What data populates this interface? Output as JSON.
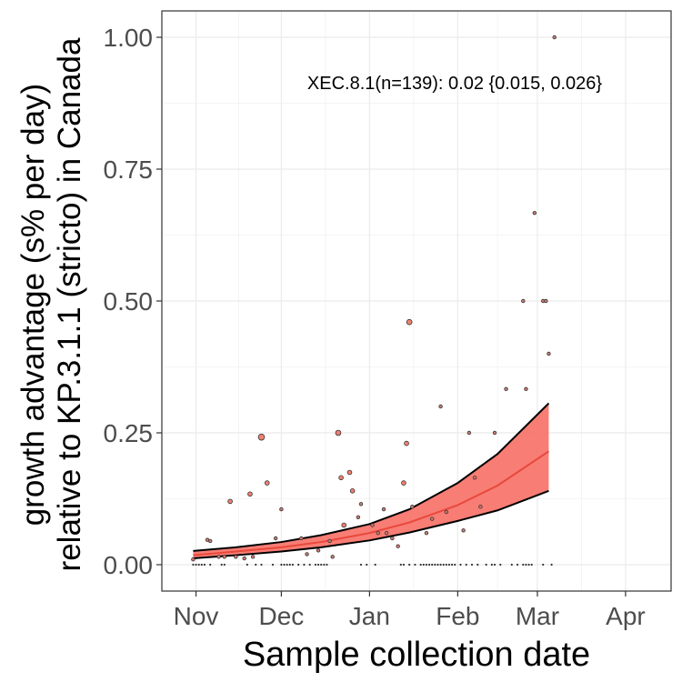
{
  "chart_data": {
    "type": "scatter",
    "xlabel": "Sample collection date",
    "ylabel_lines": [
      "growth advantage (s% per day)",
      "relative to KP.3.1.1 (stricto) in Canada"
    ],
    "annotation": "XEC.8.1(n=139): 0.02 {0.015, 0.026}",
    "x_ticks": [
      {
        "date": "2024-11-01",
        "label": "Nov"
      },
      {
        "date": "2024-12-01",
        "label": "Dec"
      },
      {
        "date": "2025-01-01",
        "label": "Jan"
      },
      {
        "date": "2025-02-01",
        "label": "Feb"
      },
      {
        "date": "2025-03-01",
        "label": "Mar"
      },
      {
        "date": "2025-04-01",
        "label": "Apr"
      }
    ],
    "y_ticks": [
      {
        "value": 0,
        "label": "0.00"
      },
      {
        "value": 0.25,
        "label": "0.25"
      },
      {
        "value": 0.5,
        "label": "0.50"
      },
      {
        "value": 0.75,
        "label": "0.75"
      },
      {
        "value": 1,
        "label": "1.00"
      }
    ],
    "xlim": [
      "2024-10-20",
      "2025-04-17"
    ],
    "ylim": [
      -0.05,
      1.05
    ],
    "grid": true,
    "fit": {
      "color": "#f8766d",
      "line_color": "#e8483c",
      "x": [
        "2024-10-31",
        "2024-11-15",
        "2024-12-01",
        "2024-12-15",
        "2025-01-01",
        "2025-01-15",
        "2025-02-01",
        "2025-02-15",
        "2025-03-05"
      ],
      "mid": [
        0.018,
        0.025,
        0.033,
        0.043,
        0.06,
        0.08,
        0.113,
        0.15,
        0.215
      ],
      "lower": [
        0.012,
        0.018,
        0.025,
        0.033,
        0.046,
        0.061,
        0.083,
        0.103,
        0.14
      ],
      "upper": [
        0.026,
        0.033,
        0.043,
        0.056,
        0.077,
        0.105,
        0.155,
        0.21,
        0.306
      ]
    },
    "points": [
      {
        "x": "2024-10-31",
        "y": 0,
        "size": 1
      },
      {
        "x": "2024-11-01",
        "y": 0,
        "size": 1
      },
      {
        "x": "2024-11-02",
        "y": 0,
        "size": 1
      },
      {
        "x": "2024-11-03",
        "y": 0,
        "size": 1
      },
      {
        "x": "2024-11-04",
        "y": 0,
        "size": 1
      },
      {
        "x": "2024-11-06",
        "y": 0,
        "size": 1
      },
      {
        "x": "2024-11-10",
        "y": 0,
        "size": 1
      },
      {
        "x": "2024-11-11",
        "y": 0,
        "size": 1
      },
      {
        "x": "2024-11-19",
        "y": 0,
        "size": 1
      },
      {
        "x": "2024-11-22",
        "y": 0,
        "size": 1
      },
      {
        "x": "2024-11-24",
        "y": 0,
        "size": 1
      },
      {
        "x": "2024-11-28",
        "y": 0,
        "size": 1
      },
      {
        "x": "2024-12-01",
        "y": 0,
        "size": 1
      },
      {
        "x": "2024-12-02",
        "y": 0,
        "size": 1
      },
      {
        "x": "2024-12-03",
        "y": 0,
        "size": 1
      },
      {
        "x": "2024-12-04",
        "y": 0,
        "size": 1
      },
      {
        "x": "2024-12-05",
        "y": 0,
        "size": 1
      },
      {
        "x": "2024-12-07",
        "y": 0,
        "size": 1
      },
      {
        "x": "2024-12-09",
        "y": 0,
        "size": 1
      },
      {
        "x": "2024-12-11",
        "y": 0,
        "size": 1
      },
      {
        "x": "2024-12-13",
        "y": 0,
        "size": 1
      },
      {
        "x": "2024-12-14",
        "y": 0,
        "size": 1
      },
      {
        "x": "2024-12-15",
        "y": 0,
        "size": 1
      },
      {
        "x": "2024-12-16",
        "y": 0,
        "size": 1
      },
      {
        "x": "2024-12-17",
        "y": 0,
        "size": 1
      },
      {
        "x": "2024-12-29",
        "y": 0,
        "size": 1
      },
      {
        "x": "2024-12-31",
        "y": 0,
        "size": 1
      },
      {
        "x": "2025-01-03",
        "y": 0,
        "size": 1
      },
      {
        "x": "2025-01-12",
        "y": 0,
        "size": 1
      },
      {
        "x": "2025-01-13",
        "y": 0,
        "size": 1
      },
      {
        "x": "2025-01-15",
        "y": 0,
        "size": 1
      },
      {
        "x": "2025-01-17",
        "y": 0,
        "size": 1
      },
      {
        "x": "2025-01-19",
        "y": 0,
        "size": 1
      },
      {
        "x": "2025-01-20",
        "y": 0,
        "size": 1
      },
      {
        "x": "2025-01-21",
        "y": 0,
        "size": 1
      },
      {
        "x": "2025-01-22",
        "y": 0,
        "size": 1
      },
      {
        "x": "2025-01-23",
        "y": 0,
        "size": 1
      },
      {
        "x": "2025-01-24",
        "y": 0,
        "size": 1
      },
      {
        "x": "2025-01-25",
        "y": 0,
        "size": 1
      },
      {
        "x": "2025-01-26",
        "y": 0,
        "size": 1
      },
      {
        "x": "2025-01-27",
        "y": 0,
        "size": 1
      },
      {
        "x": "2025-01-28",
        "y": 0,
        "size": 1
      },
      {
        "x": "2025-01-29",
        "y": 0,
        "size": 1
      },
      {
        "x": "2025-01-30",
        "y": 0,
        "size": 1
      },
      {
        "x": "2025-01-31",
        "y": 0,
        "size": 1
      },
      {
        "x": "2025-02-02",
        "y": 0,
        "size": 1
      },
      {
        "x": "2025-02-04",
        "y": 0,
        "size": 1
      },
      {
        "x": "2025-02-06",
        "y": 0,
        "size": 1
      },
      {
        "x": "2025-02-08",
        "y": 0,
        "size": 1
      },
      {
        "x": "2025-02-11",
        "y": 0,
        "size": 1
      },
      {
        "x": "2025-02-13",
        "y": 0,
        "size": 1
      },
      {
        "x": "2025-02-14",
        "y": 0,
        "size": 1
      },
      {
        "x": "2025-02-16",
        "y": 0,
        "size": 1
      },
      {
        "x": "2025-02-20",
        "y": 0,
        "size": 1
      },
      {
        "x": "2025-02-22",
        "y": 0,
        "size": 1
      },
      {
        "x": "2025-02-24",
        "y": 0,
        "size": 1
      },
      {
        "x": "2025-02-25",
        "y": 0,
        "size": 1
      },
      {
        "x": "2025-02-26",
        "y": 0,
        "size": 1
      },
      {
        "x": "2025-02-27",
        "y": 0,
        "size": 1
      },
      {
        "x": "2025-03-03",
        "y": 0,
        "size": 1
      },
      {
        "x": "2025-03-06",
        "y": 0,
        "size": 1
      },
      {
        "x": "2024-10-31",
        "y": 0.01,
        "size": 2
      },
      {
        "x": "2024-11-05",
        "y": 0.047,
        "size": 2
      },
      {
        "x": "2024-11-06",
        "y": 0.045,
        "size": 2
      },
      {
        "x": "2024-11-09",
        "y": 0.015,
        "size": 2
      },
      {
        "x": "2024-11-11",
        "y": 0.015,
        "size": 2
      },
      {
        "x": "2024-11-13",
        "y": 0.12,
        "size": 3
      },
      {
        "x": "2024-11-15",
        "y": 0.015,
        "size": 2
      },
      {
        "x": "2024-11-18",
        "y": 0.012,
        "size": 2
      },
      {
        "x": "2024-11-20",
        "y": 0.134,
        "size": 3
      },
      {
        "x": "2024-11-21",
        "y": 0.015,
        "size": 2
      },
      {
        "x": "2024-11-24",
        "y": 0.242,
        "size": 5
      },
      {
        "x": "2024-11-26",
        "y": 0.155,
        "size": 3
      },
      {
        "x": "2024-11-29",
        "y": 0.05,
        "size": 2
      },
      {
        "x": "2024-12-01",
        "y": 0.105,
        "size": 2
      },
      {
        "x": "2024-12-08",
        "y": 0.05,
        "size": 2
      },
      {
        "x": "2024-12-10",
        "y": 0.02,
        "size": 2
      },
      {
        "x": "2024-12-14",
        "y": 0.027,
        "size": 2
      },
      {
        "x": "2024-12-18",
        "y": 0.045,
        "size": 2
      },
      {
        "x": "2024-12-19",
        "y": 0.015,
        "size": 2
      },
      {
        "x": "2024-12-21",
        "y": 0.25,
        "size": 4
      },
      {
        "x": "2024-12-22",
        "y": 0.165,
        "size": 3
      },
      {
        "x": "2024-12-23",
        "y": 0.075,
        "size": 3
      },
      {
        "x": "2024-12-25",
        "y": 0.175,
        "size": 3
      },
      {
        "x": "2024-12-26",
        "y": 0.14,
        "size": 3
      },
      {
        "x": "2024-12-28",
        "y": 0.09,
        "size": 2
      },
      {
        "x": "2024-12-29",
        "y": 0.115,
        "size": 2
      },
      {
        "x": "2025-01-02",
        "y": 0.075,
        "size": 2
      },
      {
        "x": "2025-01-04",
        "y": 0.06,
        "size": 2
      },
      {
        "x": "2025-01-06",
        "y": 0.105,
        "size": 2
      },
      {
        "x": "2025-01-07",
        "y": 0.06,
        "size": 2
      },
      {
        "x": "2025-01-09",
        "y": 0.05,
        "size": 2
      },
      {
        "x": "2025-01-11",
        "y": 0.035,
        "size": 2
      },
      {
        "x": "2025-01-13",
        "y": 0.155,
        "size": 3
      },
      {
        "x": "2025-01-14",
        "y": 0.23,
        "size": 3
      },
      {
        "x": "2025-01-15",
        "y": 0.46,
        "size": 4
      },
      {
        "x": "2025-01-16",
        "y": 0.11,
        "size": 2
      },
      {
        "x": "2025-01-21",
        "y": 0.06,
        "size": 2
      },
      {
        "x": "2025-01-23",
        "y": 0.087,
        "size": 2
      },
      {
        "x": "2025-01-26",
        "y": 0.3,
        "size": 2
      },
      {
        "x": "2025-01-28",
        "y": 0.1,
        "size": 2
      },
      {
        "x": "2025-02-03",
        "y": 0.065,
        "size": 2
      },
      {
        "x": "2025-02-05",
        "y": 0.25,
        "size": 2
      },
      {
        "x": "2025-02-07",
        "y": 0.165,
        "size": 2
      },
      {
        "x": "2025-02-09",
        "y": 0.11,
        "size": 2
      },
      {
        "x": "2025-02-14",
        "y": 0.25,
        "size": 2
      },
      {
        "x": "2025-02-18",
        "y": 0.333,
        "size": 2
      },
      {
        "x": "2025-02-24",
        "y": 0.5,
        "size": 2
      },
      {
        "x": "2025-02-25",
        "y": 0.333,
        "size": 2
      },
      {
        "x": "2025-02-28",
        "y": 0.667,
        "size": 2
      },
      {
        "x": "2025-03-03",
        "y": 0.5,
        "size": 2
      },
      {
        "x": "2025-03-04",
        "y": 0.5,
        "size": 2
      },
      {
        "x": "2025-03-05",
        "y": 0.4,
        "size": 2
      },
      {
        "x": "2025-03-07",
        "y": 1.0,
        "size": 2
      }
    ]
  }
}
